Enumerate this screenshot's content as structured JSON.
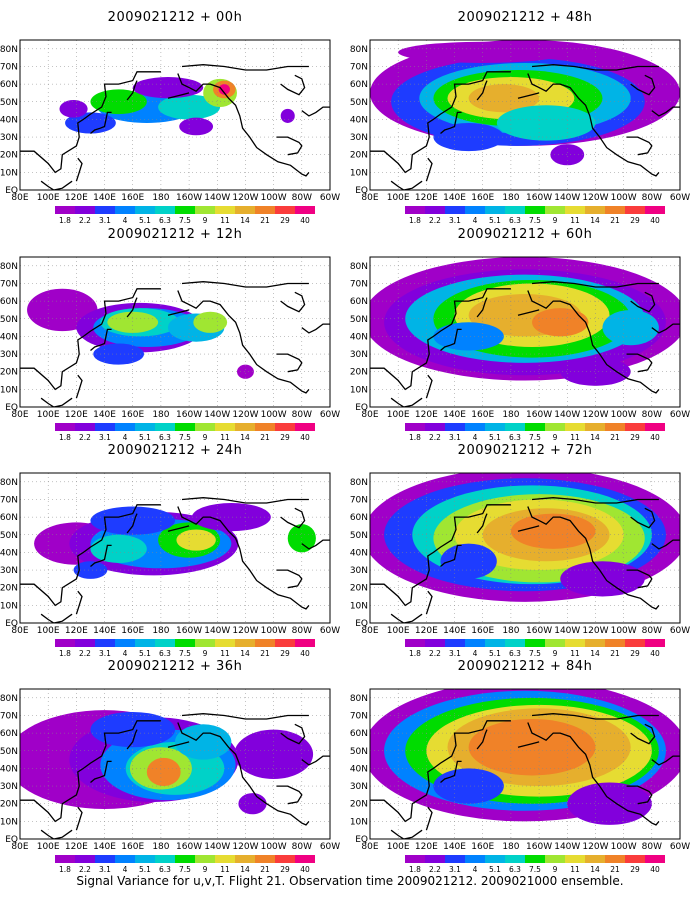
{
  "figure": {
    "caption": "Signal Variance for u,v,T. Flight 21. Observation time 2009021212. 2009021000 ensemble."
  },
  "panels": [
    {
      "title": "2009021212 + 00h",
      "lead_hours": 0
    },
    {
      "title": "2009021212 + 48h",
      "lead_hours": 48
    },
    {
      "title": "2009021212 + 12h",
      "lead_hours": 12
    },
    {
      "title": "2009021212 + 60h",
      "lead_hours": 60
    },
    {
      "title": "2009021212 + 24h",
      "lead_hours": 24
    },
    {
      "title": "2009021212 + 72h",
      "lead_hours": 72
    },
    {
      "title": "2009021212 + 36h",
      "lead_hours": 36
    },
    {
      "title": "2009021212 + 84h",
      "lead_hours": 84
    }
  ],
  "axes": {
    "lon_labels": [
      "80E",
      "100E",
      "120E",
      "140E",
      "160E",
      "180",
      "160W",
      "140W",
      "120W",
      "100W",
      "80W",
      "60W"
    ],
    "lat_labels": [
      "EQ",
      "10N",
      "20N",
      "30N",
      "40N",
      "50N",
      "60N",
      "70N",
      "80N"
    ]
  },
  "colorbar": {
    "levels": [
      "1.8",
      "2.2",
      "3.1",
      "4",
      "5.1",
      "6.3",
      "7.5",
      "9",
      "11",
      "14",
      "21",
      "29",
      "40"
    ],
    "colors": [
      "#a000c8",
      "#8200dc",
      "#1e3cff",
      "#0082ff",
      "#00b4e6",
      "#00d2c8",
      "#00dc00",
      "#a0e632",
      "#e6dc32",
      "#e6af2d",
      "#f08228",
      "#fa3c3c",
      "#f00082"
    ]
  },
  "ui": {
    "background": "#ffffff"
  }
}
